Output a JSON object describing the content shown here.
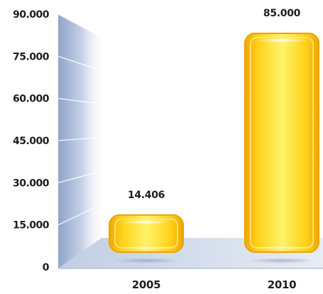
{
  "chart_data": {
    "type": "bar",
    "categories": [
      "2005",
      "2010"
    ],
    "values": [
      14406,
      85000
    ],
    "value_labels": [
      "14.406",
      "85.000"
    ],
    "ylim": [
      0,
      90000
    ],
    "yticks": [
      0,
      15000,
      30000,
      45000,
      60000,
      75000,
      90000
    ],
    "ytick_labels": [
      "0",
      "15.000",
      "30.000",
      "45.000",
      "60.000",
      "75.000",
      "90.000"
    ],
    "title": "",
    "xlabel": "",
    "ylabel": "",
    "grid": true,
    "legend": "none",
    "colors": {
      "bar_light": "#FFF36B",
      "bar_mid": "#FFD21A",
      "bar_dark": "#F2A800",
      "bar_edge": "#E9A300",
      "wall_dark": "#8FA4C9",
      "wall_light": "#F4F7FB",
      "floor": "#C9D5E8",
      "text": "#1E1E1E"
    }
  }
}
